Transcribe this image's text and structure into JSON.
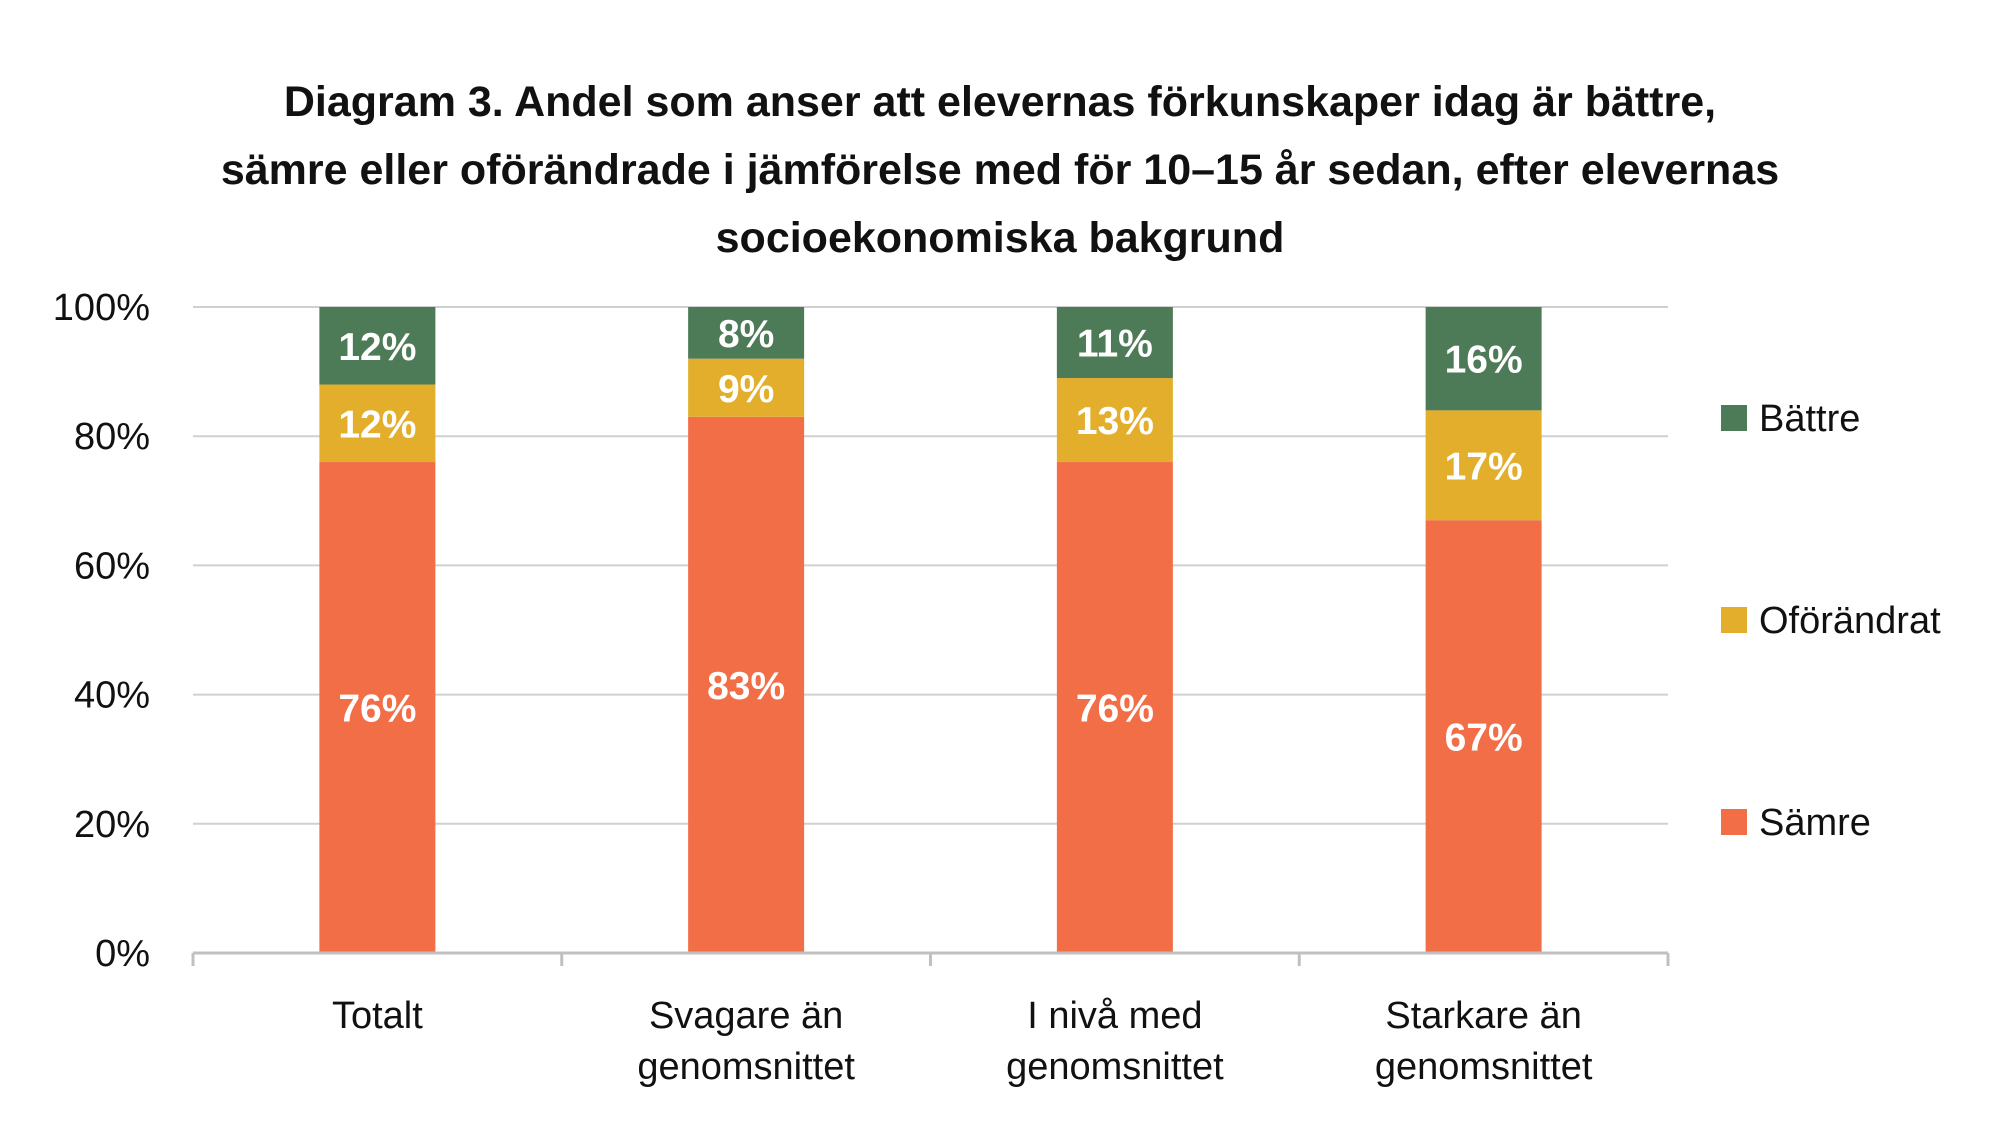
{
  "chart_data": {
    "type": "bar",
    "stacked": true,
    "title_lines": [
      "Diagram 3. Andel som anser att elevernas förkunskaper idag är bättre,",
      "sämre eller oförändrade i jämförelse med för 10–15 år sedan, efter elevernas",
      "socioekonomiska bakgrund"
    ],
    "categories": [
      [
        "Totalt"
      ],
      [
        "Svagare än",
        "genomsnittet"
      ],
      [
        "I nivå med",
        "genomsnittet"
      ],
      [
        "Starkare än",
        "genomsnittet"
      ]
    ],
    "series": [
      {
        "name": "Sämre",
        "color": "#F26E47",
        "values": [
          76,
          83,
          76,
          67
        ],
        "labels": [
          "76%",
          "83%",
          "76%",
          "67%"
        ]
      },
      {
        "name": "Oförändrat",
        "color": "#E3AE2B",
        "values": [
          12,
          9,
          13,
          17
        ],
        "labels": [
          "12%",
          "9%",
          "13%",
          "17%"
        ]
      },
      {
        "name": "Bättre",
        "color": "#4D7A57",
        "values": [
          12,
          8,
          11,
          16
        ],
        "labels": [
          "12%",
          "8%",
          "11%",
          "16%"
        ]
      }
    ],
    "ylim": [
      0,
      100
    ],
    "yticks": [
      "0%",
      "20%",
      "40%",
      "60%",
      "80%",
      "100%"
    ],
    "ytick_values": [
      0,
      20,
      40,
      60,
      80,
      100
    ],
    "legend_order": [
      "Bättre",
      "Oförändrat",
      "Sämre"
    ],
    "legend_position": "right",
    "grid": true,
    "grid_color": "#d0d0d0",
    "axis_color": "#c0c0c0"
  }
}
